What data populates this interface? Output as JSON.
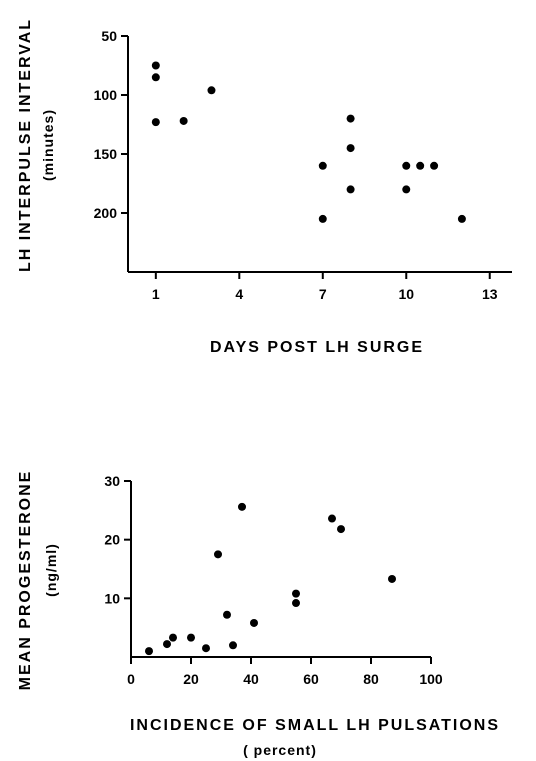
{
  "chart_data": [
    {
      "type": "scatter",
      "ylabel": "LH INTERPULSE INTERVAL",
      "ylabel_sub": "(minutes)",
      "xlabel": "DAYS POST LH SURGE",
      "xlabel_sub": "",
      "x_ticks": [
        1,
        4,
        7,
        10,
        13
      ],
      "y_ticks": [
        50,
        100,
        150,
        200
      ],
      "xlim": [
        0,
        13.8
      ],
      "ylim": [
        50,
        250
      ],
      "y_inverted": true,
      "grid": false,
      "points": [
        {
          "x": 1,
          "y": 75
        },
        {
          "x": 1,
          "y": 85
        },
        {
          "x": 1,
          "y": 123
        },
        {
          "x": 2,
          "y": 122
        },
        {
          "x": 3,
          "y": 96
        },
        {
          "x": 7,
          "y": 160
        },
        {
          "x": 7,
          "y": 205
        },
        {
          "x": 8,
          "y": 120
        },
        {
          "x": 8,
          "y": 145
        },
        {
          "x": 8,
          "y": 180
        },
        {
          "x": 10,
          "y": 160
        },
        {
          "x": 10,
          "y": 180
        },
        {
          "x": 10.5,
          "y": 160
        },
        {
          "x": 11,
          "y": 160
        },
        {
          "x": 12,
          "y": 205
        }
      ]
    },
    {
      "type": "scatter",
      "ylabel": "MEAN PROGESTERONE",
      "ylabel_sub": "(ng/ml)",
      "xlabel": "INCIDENCE OF SMALL LH PULSATIONS",
      "xlabel_sub": "( percent)",
      "x_ticks": [
        0,
        20,
        40,
        60,
        80,
        100
      ],
      "y_ticks": [
        10,
        20,
        30
      ],
      "xlim": [
        0,
        100
      ],
      "ylim": [
        0,
        30
      ],
      "y_inverted": false,
      "grid": false,
      "points": [
        {
          "x": 6,
          "y": 1
        },
        {
          "x": 12,
          "y": 2.2
        },
        {
          "x": 14,
          "y": 3.3
        },
        {
          "x": 20,
          "y": 3.3
        },
        {
          "x": 25,
          "y": 1.5
        },
        {
          "x": 29,
          "y": 17.5
        },
        {
          "x": 32,
          "y": 7.2
        },
        {
          "x": 34,
          "y": 2
        },
        {
          "x": 37,
          "y": 25.6
        },
        {
          "x": 41,
          "y": 5.8
        },
        {
          "x": 55,
          "y": 9.2
        },
        {
          "x": 55,
          "y": 10.8
        },
        {
          "x": 67,
          "y": 23.6
        },
        {
          "x": 70,
          "y": 21.8
        },
        {
          "x": 87,
          "y": 13.3
        }
      ]
    }
  ]
}
